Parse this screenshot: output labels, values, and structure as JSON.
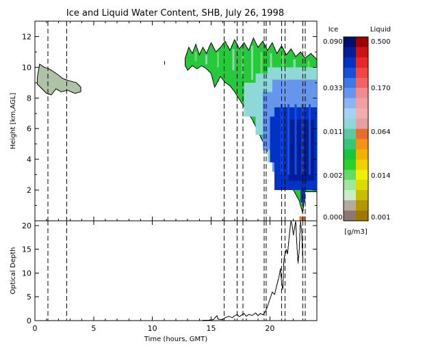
{
  "title": "Ice and Liquid Water Content, SHB, July 26, 1998",
  "xaxis": {
    "label": "Time (hours, GMT)",
    "ticks": [
      "0",
      "5",
      "10",
      "15",
      "20"
    ],
    "range": [
      0,
      24
    ]
  },
  "colorbar": {
    "ice_title": "Ice",
    "liquid_title": "Liquid",
    "units": "[g/m3]",
    "ice_labels": [
      "0.090",
      "0.033",
      "0.011",
      "0.002",
      "0.000"
    ],
    "liquid_labels": [
      "0.500",
      "0.170",
      "0.064",
      "0.014",
      "0.001"
    ],
    "ice_colors": [
      "#000f6e",
      "#001e9a",
      "#0032c8",
      "#1450dc",
      "#3c78e6",
      "#6496ee",
      "#8cb4f2",
      "#a5d2f0",
      "#8ed8d8",
      "#5ac8a0",
      "#32c878",
      "#14c83c",
      "#28d228",
      "#64dc64",
      "#a0e6a0",
      "#c8eec8",
      "#b4aaa0",
      "#8c786e"
    ],
    "liquid_colors": [
      "#a00000",
      "#c81414",
      "#e62828",
      "#f04646",
      "#f06464",
      "#f08c8c",
      "#f0a0a0",
      "#f0afaf",
      "#e6a0a0",
      "#e66e28",
      "#f09614",
      "#f0b400",
      "#f0d200",
      "#f0f000",
      "#dcdc00",
      "#c8be00",
      "#b49600",
      "#a07800"
    ]
  },
  "chart_data": [
    {
      "type": "heatmap",
      "title": "Ice and Liquid Water Content, SHB, July 26, 1998",
      "xlabel": "Time (hours, GMT)",
      "ylabel": "Height [km,AGL]",
      "xlim": [
        0,
        24
      ],
      "ylim": [
        0,
        13
      ],
      "yticks": [
        "2",
        "4",
        "6",
        "8",
        "10",
        "12"
      ],
      "grid": false,
      "vlines": [
        1.1,
        2.7,
        16.1,
        17.2,
        17.7,
        19.5,
        19.7,
        21.0,
        21.3,
        22.8,
        23.0
      ],
      "cloud_layers": [
        {
          "time_start": 0.2,
          "time_end": 3.9,
          "top_km": 10.2,
          "base_km": 8.2,
          "content": "ice 0.000-0.002 g/m3"
        },
        {
          "time_start": 12.8,
          "time_end": 24.0,
          "top_km": 11.5,
          "base_km": 0.5,
          "content": "ice 0.002-0.090 g/m3"
        }
      ],
      "liquid_patch": {
        "time_start": 22.5,
        "time_end": 23.0,
        "top_km": 0.3,
        "base_km": 0.0,
        "content": "liquid 0.014-0.064 g/m3"
      }
    },
    {
      "type": "line",
      "title": "",
      "xlabel": "Time (hours, GMT)",
      "ylabel": "Optical Depth",
      "xlim": [
        0,
        24
      ],
      "ylim": [
        0,
        21
      ],
      "yticks": [
        "0",
        "5",
        "10",
        "15",
        "20"
      ],
      "grid": false,
      "vlines": [
        1.1,
        2.7,
        16.1,
        17.2,
        17.7,
        19.5,
        19.7,
        21.0,
        21.3,
        22.8,
        23.0
      ],
      "series": [
        {
          "x": [
            13.0,
            14.0,
            14.8,
            15.2,
            15.4,
            15.5,
            15.6,
            15.9,
            16.0,
            16.2,
            16.5,
            16.8,
            17.0,
            17.2,
            17.4,
            17.6,
            17.8,
            18.0,
            18.2,
            18.5,
            18.8,
            19.0,
            19.2,
            19.4,
            19.6,
            19.8,
            20.0,
            20.2,
            20.4,
            20.6,
            20.8,
            20.9,
            21.0,
            21.1,
            21.2,
            21.4,
            21.5,
            21.6,
            21.7,
            21.8,
            21.9,
            22.0,
            22.1,
            22.2,
            22.3,
            22.4,
            22.5,
            22.6,
            22.7,
            22.8
          ],
          "y": [
            0.0,
            0.0,
            0.1,
            0.2,
            0.8,
            1.0,
            0.3,
            0.2,
            0.3,
            0.6,
            0.9,
            0.6,
            1.0,
            1.3,
            0.8,
            1.2,
            1.5,
            0.9,
            1.3,
            1.1,
            1.6,
            1.0,
            1.5,
            1.2,
            1.8,
            3.0,
            4.5,
            6.0,
            5.5,
            7.5,
            9.5,
            11.0,
            8.0,
            6.5,
            13.0,
            15.0,
            14.0,
            16.5,
            19.0,
            21.0,
            20.0,
            18.0,
            19.5,
            21.0,
            16.0,
            12.0,
            15.0,
            21.0,
            19.0,
            13.0
          ]
        }
      ]
    }
  ]
}
